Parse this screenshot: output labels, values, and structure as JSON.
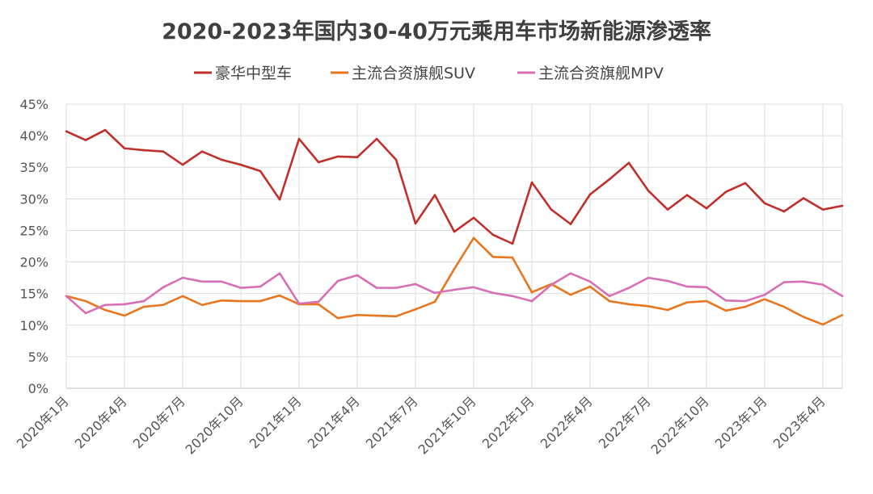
{
  "chart_data": {
    "type": "line",
    "title": "2020-2023年国内30-40万元乘用车市场新能源渗透率",
    "legend_position": "top",
    "grid": true,
    "ylim": [
      0,
      45
    ],
    "y_ticks": [
      "0%",
      "5%",
      "10%",
      "15%",
      "20%",
      "25%",
      "30%",
      "35%",
      "40%",
      "45%"
    ],
    "x_tick_labels": [
      "2020年1月",
      "2020年4月",
      "2020年7月",
      "2020年10月",
      "2021年1月",
      "2021年4月",
      "2021年7月",
      "2021年10月",
      "2022年1月",
      "2022年4月",
      "2022年7月",
      "2022年10月",
      "2023年1月",
      "2023年4月"
    ],
    "x": [
      "2020-01",
      "2020-02",
      "2020-03",
      "2020-04",
      "2020-05",
      "2020-06",
      "2020-07",
      "2020-08",
      "2020-09",
      "2020-10",
      "2020-11",
      "2020-12",
      "2021-01",
      "2021-02",
      "2021-03",
      "2021-04",
      "2021-05",
      "2021-06",
      "2021-07",
      "2021-08",
      "2021-09",
      "2021-10",
      "2021-11",
      "2021-12",
      "2022-01",
      "2022-02",
      "2022-03",
      "2022-04",
      "2022-05",
      "2022-06",
      "2022-07",
      "2022-08",
      "2022-09",
      "2022-10",
      "2022-11",
      "2022-12",
      "2023-01",
      "2023-02",
      "2023-03",
      "2023-04",
      "2023-05"
    ],
    "series": [
      {
        "name": "豪华中型车",
        "color": "#c0302b",
        "values": [
          40.7,
          39.3,
          40.9,
          38.0,
          37.7,
          37.5,
          35.4,
          37.5,
          36.2,
          35.4,
          34.4,
          29.9,
          39.5,
          35.8,
          36.7,
          36.6,
          39.5,
          36.2,
          26.1,
          30.6,
          24.8,
          27.0,
          24.3,
          22.9,
          32.6,
          28.3,
          26.0,
          30.7,
          33.1,
          35.7,
          31.3,
          28.3,
          30.6,
          28.5,
          31.1,
          32.5,
          29.3,
          28.0,
          30.1,
          28.3,
          28.9
        ]
      },
      {
        "name": "主流合资旗舰SUV",
        "color": "#e8761e",
        "values": [
          14.6,
          13.8,
          12.4,
          11.5,
          12.9,
          13.2,
          14.6,
          13.2,
          13.9,
          13.8,
          13.8,
          14.7,
          13.3,
          13.3,
          11.1,
          11.6,
          11.5,
          11.4,
          12.5,
          13.7,
          18.9,
          23.8,
          20.8,
          20.7,
          15.2,
          16.5,
          14.8,
          16.1,
          13.8,
          13.3,
          13.0,
          12.4,
          13.6,
          13.8,
          12.3,
          12.9,
          14.1,
          12.9,
          11.3,
          10.1,
          11.6
        ]
      },
      {
        "name": "主流合资旗舰MPV",
        "color": "#d86fb5",
        "values": [
          14.6,
          11.9,
          13.2,
          13.3,
          13.8,
          16.0,
          17.5,
          16.9,
          16.9,
          15.9,
          16.1,
          18.2,
          13.4,
          13.7,
          17.0,
          17.9,
          15.9,
          15.9,
          16.5,
          15.1,
          15.6,
          16.0,
          15.1,
          14.6,
          13.8,
          16.4,
          18.2,
          16.9,
          14.6,
          15.9,
          17.5,
          17.0,
          16.1,
          16.0,
          13.9,
          13.8,
          14.8,
          16.8,
          16.9,
          16.4,
          14.6
        ]
      }
    ]
  }
}
